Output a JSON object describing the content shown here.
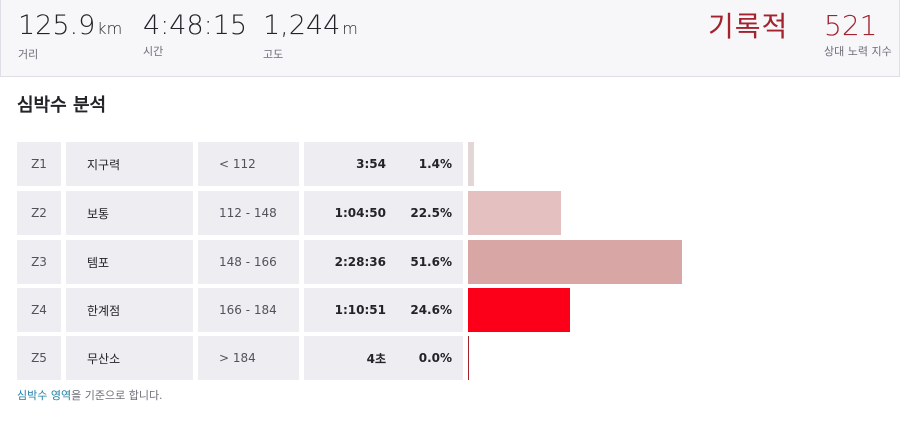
{
  "summary": {
    "distance": {
      "value": "125.9",
      "unit": "km",
      "label": "거리"
    },
    "time": {
      "value": "4:48:15",
      "label": "시간"
    },
    "elevation": {
      "value": "1,244",
      "unit": "m",
      "label": "고도"
    },
    "record_label": "기록적",
    "relative_effort": {
      "value": "521",
      "label": "상대 노력 지수"
    }
  },
  "section_title": "심박수 분석",
  "zones": [
    {
      "zone": "Z1",
      "name": "지구력",
      "range": "< 112",
      "time": "3:54",
      "percent_label": "1.4%",
      "percent": 1.4,
      "color": "#e2d6d6"
    },
    {
      "zone": "Z2",
      "name": "보통",
      "range": "112 - 148",
      "time": "1:04:50",
      "percent_label": "22.5%",
      "percent": 22.5,
      "color": "#e4c0c0"
    },
    {
      "zone": "Z3",
      "name": "템포",
      "range": "148 - 166",
      "time": "2:28:36",
      "percent_label": "51.6%",
      "percent": 51.6,
      "color": "#d9a6a6"
    },
    {
      "zone": "Z4",
      "name": "한계점",
      "range": "166 - 184",
      "time": "1:10:51",
      "percent_label": "24.6%",
      "percent": 24.6,
      "color": "#fc0019"
    },
    {
      "zone": "Z5",
      "name": "무산소",
      "range": "> 184",
      "time": "4초",
      "percent_label": "0.0%",
      "percent": 0.0,
      "color": "#a3222e"
    }
  ],
  "footer": {
    "link_text": "심박수 영역",
    "suffix": "을 기준으로 합니다."
  }
}
